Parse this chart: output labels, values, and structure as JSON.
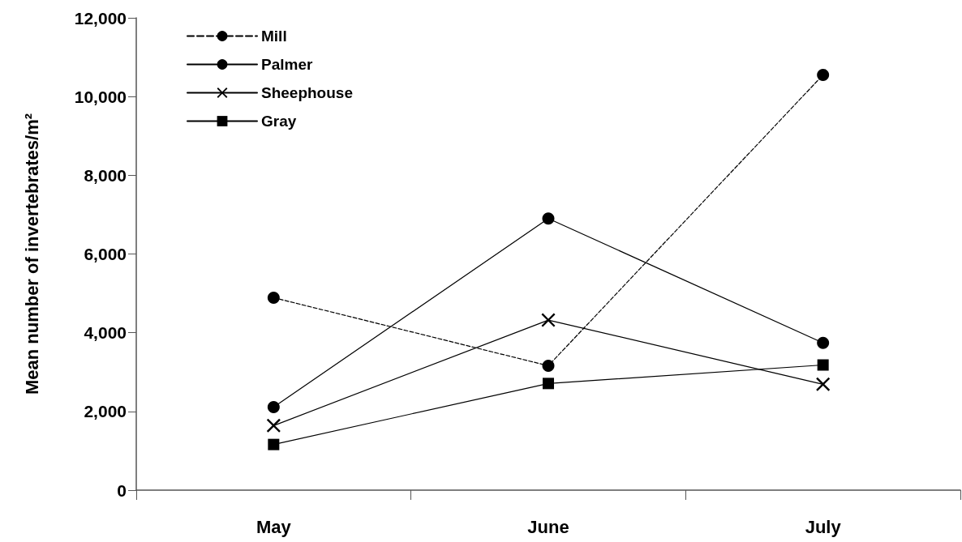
{
  "chart_data": {
    "type": "line",
    "ylabel": "Mean number of invertebrates/m²",
    "categories": [
      "May",
      "June",
      "July"
    ],
    "series": [
      {
        "name": "Mill",
        "color": "#000000",
        "marker": "circle",
        "line_style": "dashed",
        "values": [
          4890,
          3160,
          10550
        ]
      },
      {
        "name": "Palmer",
        "color": "#000000",
        "marker": "circle",
        "line_style": "solid",
        "values": [
          2110,
          6900,
          3740
        ]
      },
      {
        "name": "Sheephouse",
        "color": "#000000",
        "marker": "cross",
        "line_style": "solid",
        "values": [
          1640,
          4320,
          2690
        ]
      },
      {
        "name": "Gray",
        "color": "#000000",
        "marker": "square",
        "line_style": "solid",
        "values": [
          1160,
          2710,
          3180
        ]
      }
    ],
    "ylim": [
      0,
      12000
    ],
    "yticks": [
      0,
      {
        "value": 2000,
        "label": "2,000"
      },
      {
        "value": 4000,
        "label": "4,000"
      },
      {
        "value": 6000,
        "label": "6,000"
      },
      {
        "value": 8000,
        "label": "8,000"
      },
      {
        "value": 10000,
        "label": "10,000"
      },
      {
        "value": 12000,
        "label": "12,000"
      }
    ],
    "grid": false,
    "legend": "top left"
  }
}
